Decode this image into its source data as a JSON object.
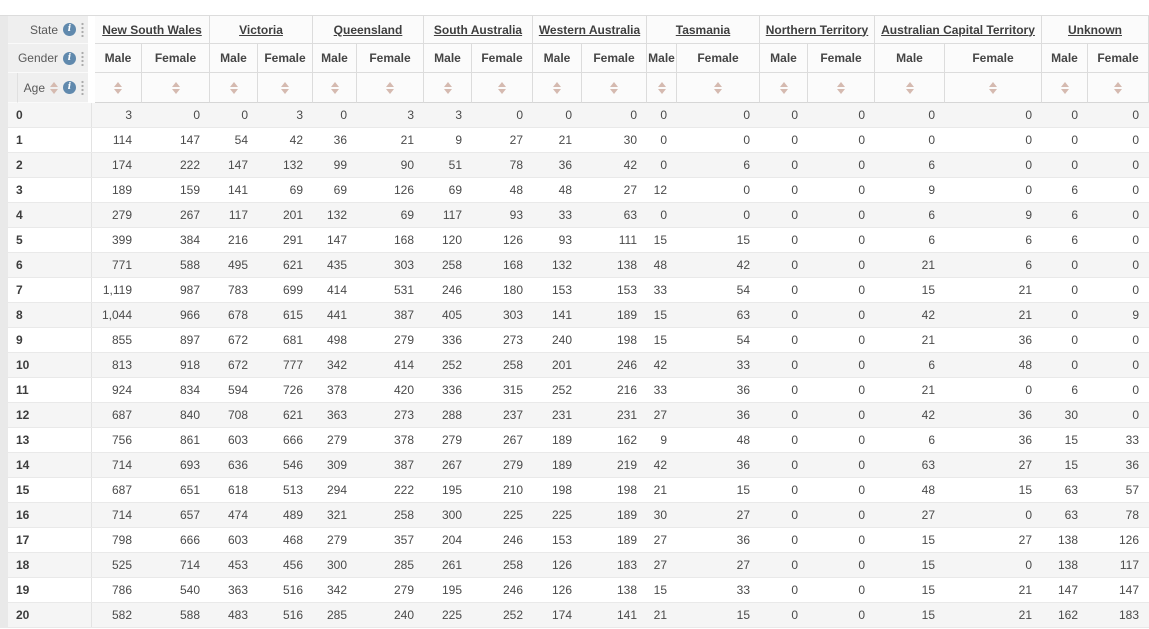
{
  "pivot_table": {
    "corner": {
      "state_label": "State",
      "gender_label": "Gender",
      "age_label": "Age"
    },
    "states": [
      "New South Wales",
      "Victoria",
      "Queensland",
      "South Australia",
      "Western Australia",
      "Tasmania",
      "Northern Territory",
      "Australian Capital Territory",
      "Unknown"
    ],
    "genders": [
      "Male",
      "Female"
    ],
    "ages": [
      "0",
      "1",
      "2",
      "3",
      "4",
      "5",
      "6",
      "7",
      "8",
      "9",
      "10",
      "11",
      "12",
      "13",
      "14",
      "15",
      "16",
      "17",
      "18",
      "19",
      "20"
    ],
    "values": [
      [
        "3",
        "0",
        "0",
        "3",
        "0",
        "3",
        "3",
        "0",
        "0",
        "0",
        "0",
        "0",
        "0",
        "0",
        "0",
        "0",
        "0",
        "0"
      ],
      [
        "114",
        "147",
        "54",
        "42",
        "36",
        "21",
        "9",
        "27",
        "21",
        "30",
        "0",
        "0",
        "0",
        "0",
        "0",
        "0",
        "0",
        "0"
      ],
      [
        "174",
        "222",
        "147",
        "132",
        "99",
        "90",
        "51",
        "78",
        "36",
        "42",
        "0",
        "6",
        "0",
        "0",
        "6",
        "0",
        "0",
        "0"
      ],
      [
        "189",
        "159",
        "141",
        "69",
        "69",
        "126",
        "69",
        "48",
        "48",
        "27",
        "12",
        "0",
        "0",
        "0",
        "9",
        "0",
        "6",
        "0"
      ],
      [
        "279",
        "267",
        "117",
        "201",
        "132",
        "69",
        "117",
        "93",
        "33",
        "63",
        "0",
        "0",
        "0",
        "0",
        "6",
        "9",
        "6",
        "0"
      ],
      [
        "399",
        "384",
        "216",
        "291",
        "147",
        "168",
        "120",
        "126",
        "93",
        "111",
        "15",
        "15",
        "0",
        "0",
        "6",
        "6",
        "6",
        "0"
      ],
      [
        "771",
        "588",
        "495",
        "621",
        "435",
        "303",
        "258",
        "168",
        "132",
        "138",
        "48",
        "42",
        "0",
        "0",
        "21",
        "6",
        "0",
        "0"
      ],
      [
        "1,119",
        "987",
        "783",
        "699",
        "414",
        "531",
        "246",
        "180",
        "153",
        "153",
        "33",
        "54",
        "0",
        "0",
        "15",
        "21",
        "0",
        "0"
      ],
      [
        "1,044",
        "966",
        "678",
        "615",
        "441",
        "387",
        "405",
        "303",
        "141",
        "189",
        "15",
        "63",
        "0",
        "0",
        "42",
        "21",
        "0",
        "9"
      ],
      [
        "855",
        "897",
        "672",
        "681",
        "498",
        "279",
        "336",
        "273",
        "240",
        "198",
        "15",
        "54",
        "0",
        "0",
        "21",
        "36",
        "0",
        "0"
      ],
      [
        "813",
        "918",
        "672",
        "777",
        "342",
        "414",
        "252",
        "258",
        "201",
        "246",
        "42",
        "33",
        "0",
        "0",
        "6",
        "48",
        "0",
        "0"
      ],
      [
        "924",
        "834",
        "594",
        "726",
        "378",
        "420",
        "336",
        "315",
        "252",
        "216",
        "33",
        "36",
        "0",
        "0",
        "21",
        "0",
        "6",
        "0"
      ],
      [
        "687",
        "840",
        "708",
        "621",
        "363",
        "273",
        "288",
        "237",
        "231",
        "231",
        "27",
        "36",
        "0",
        "0",
        "42",
        "36",
        "30",
        "0"
      ],
      [
        "756",
        "861",
        "603",
        "666",
        "279",
        "378",
        "279",
        "267",
        "189",
        "162",
        "9",
        "48",
        "0",
        "0",
        "6",
        "36",
        "15",
        "33"
      ],
      [
        "714",
        "693",
        "636",
        "546",
        "309",
        "387",
        "267",
        "279",
        "189",
        "219",
        "42",
        "36",
        "0",
        "0",
        "63",
        "27",
        "15",
        "36"
      ],
      [
        "687",
        "651",
        "618",
        "513",
        "294",
        "222",
        "195",
        "210",
        "198",
        "198",
        "21",
        "15",
        "0",
        "0",
        "48",
        "15",
        "63",
        "57"
      ],
      [
        "714",
        "657",
        "474",
        "489",
        "321",
        "258",
        "300",
        "225",
        "225",
        "189",
        "30",
        "27",
        "0",
        "0",
        "27",
        "0",
        "63",
        "78"
      ],
      [
        "798",
        "666",
        "603",
        "468",
        "279",
        "357",
        "204",
        "246",
        "153",
        "189",
        "27",
        "36",
        "0",
        "0",
        "15",
        "27",
        "138",
        "126"
      ],
      [
        "525",
        "714",
        "453",
        "456",
        "300",
        "285",
        "261",
        "258",
        "126",
        "183",
        "27",
        "27",
        "0",
        "0",
        "15",
        "0",
        "138",
        "117"
      ],
      [
        "786",
        "540",
        "363",
        "516",
        "342",
        "279",
        "195",
        "246",
        "126",
        "138",
        "15",
        "33",
        "0",
        "0",
        "15",
        "21",
        "147",
        "147"
      ],
      [
        "582",
        "588",
        "483",
        "516",
        "285",
        "240",
        "225",
        "252",
        "174",
        "141",
        "21",
        "15",
        "0",
        "0",
        "15",
        "21",
        "162",
        "183"
      ]
    ]
  },
  "icons": {
    "info_glyph": "i"
  },
  "colors": {
    "info_icon_bg": "#6089AD",
    "sort_arrow": "#D5BAB0",
    "state_link_text": "#3F3F3F",
    "stripe_row_bg": "#F5F5F5"
  }
}
